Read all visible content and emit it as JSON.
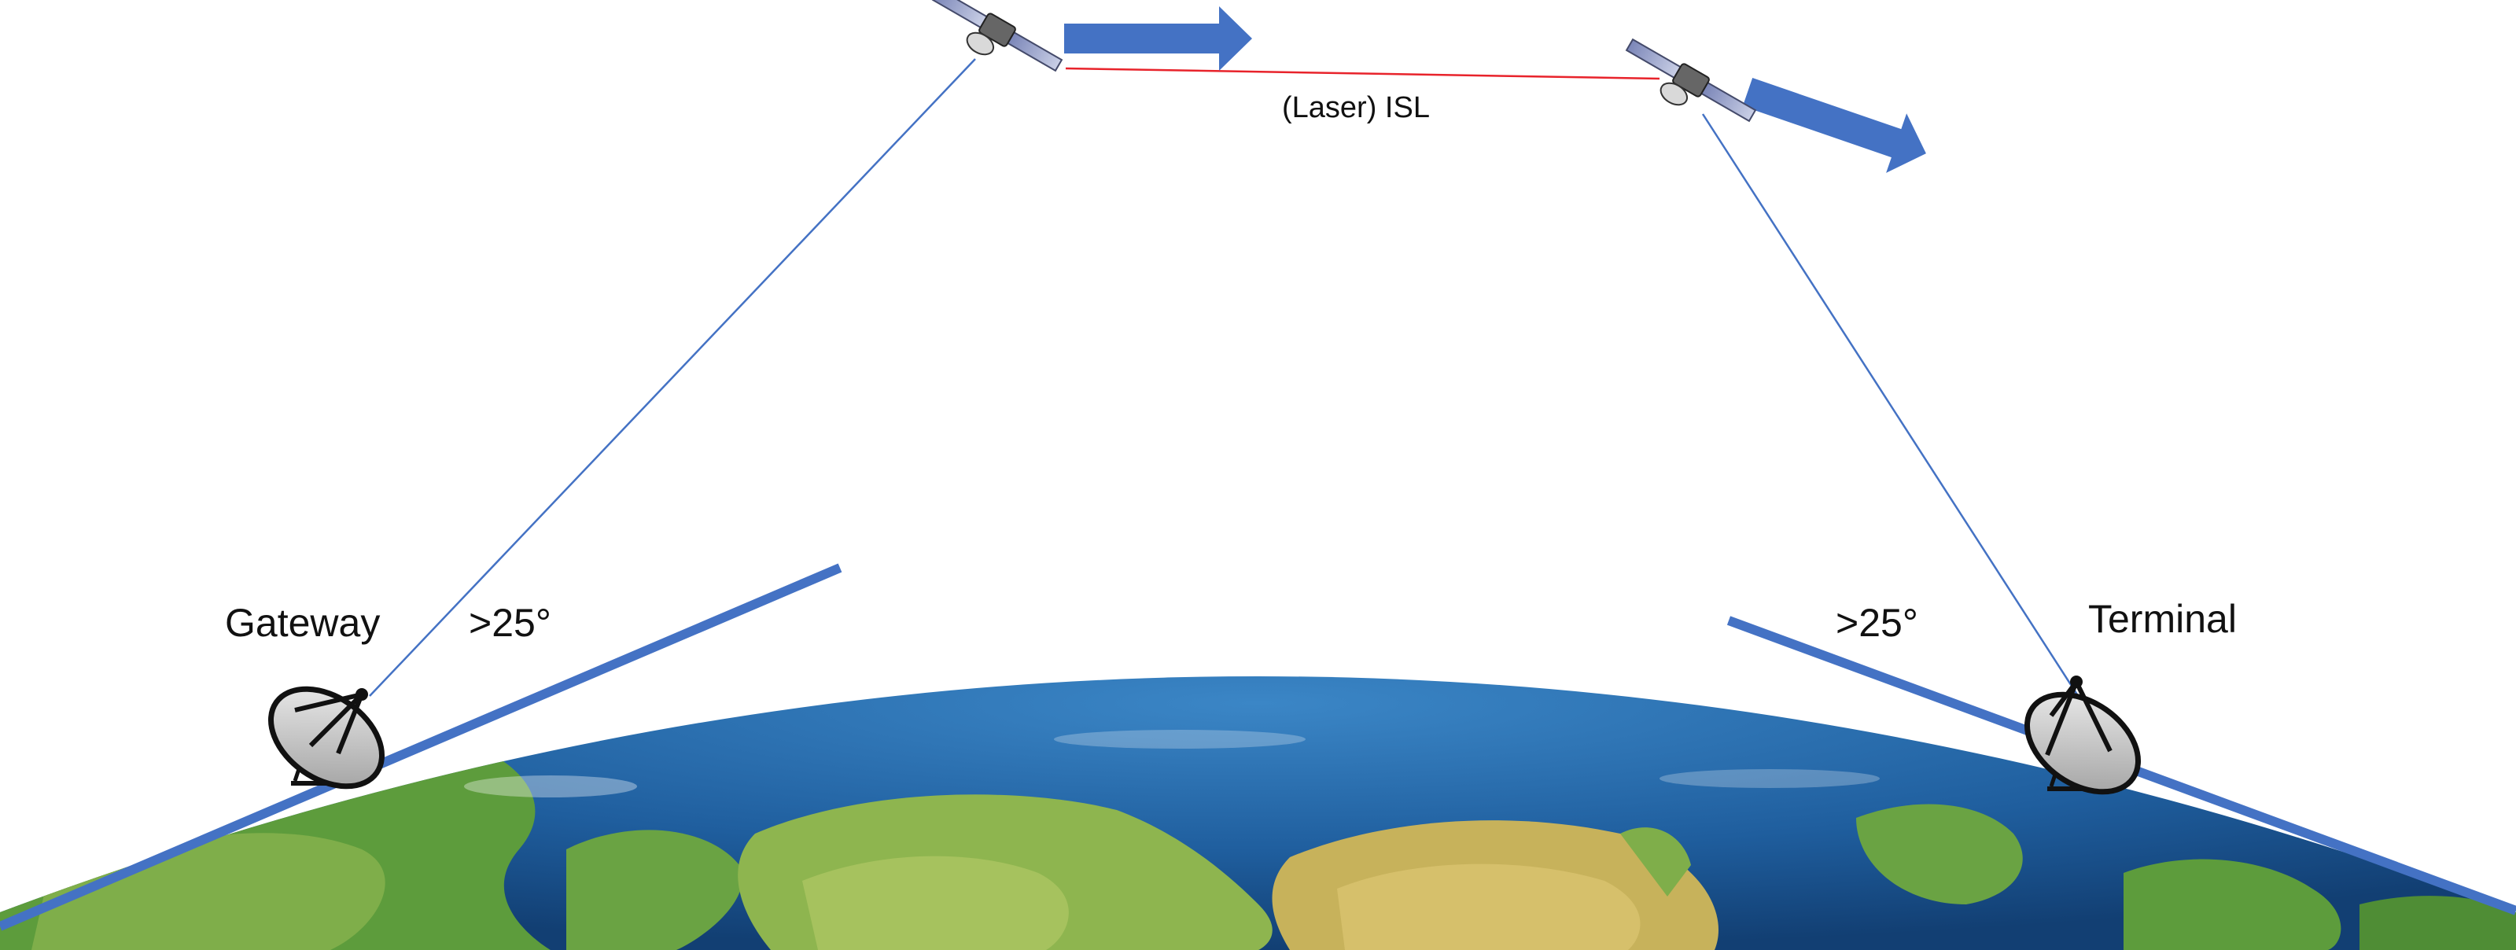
{
  "labels": {
    "gateway": "Gateway",
    "terminal": "Terminal",
    "angle_left": ">25°",
    "angle_right": ">25°",
    "isl": "(Laser) ISL"
  },
  "colors": {
    "link_line": "#4472c4",
    "isl_line": "#e8232b",
    "motion_arrow": "#4472c4",
    "horizon_line": "#4472c4",
    "ocean": "#1f5e9e",
    "land_green": "#5a9a3a",
    "land_desert": "#c9b25a"
  },
  "icons": {
    "satellite_left": "satellite-icon",
    "satellite_right": "satellite-icon",
    "gateway_dish": "satellite-dish-icon",
    "terminal_dish": "satellite-dish-icon"
  }
}
